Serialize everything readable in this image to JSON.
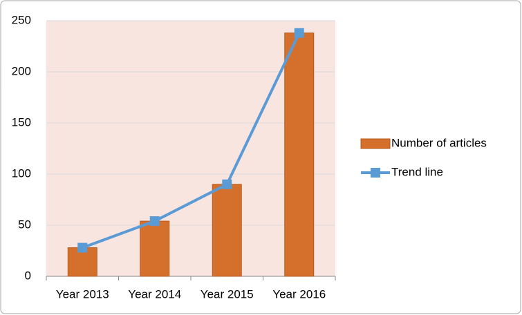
{
  "chart_data": {
    "type": "bar",
    "categories": [
      "Year 2013",
      "Year 2014",
      "Year 2015",
      "Year 2016"
    ],
    "series": [
      {
        "name": "Number of articles",
        "type": "bar",
        "color": "#d4702c",
        "values": [
          28,
          54,
          90,
          238
        ]
      },
      {
        "name": "Trend line",
        "type": "line",
        "color": "#5b9bd5",
        "values": [
          28,
          54,
          90,
          238
        ]
      }
    ],
    "ylim": [
      0,
      250
    ],
    "yticks": [
      0,
      50,
      100,
      150,
      200,
      250
    ],
    "grid": true,
    "legend": "right"
  }
}
